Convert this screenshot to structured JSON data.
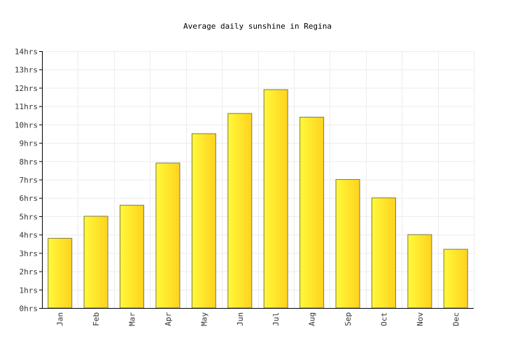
{
  "chart_data": {
    "type": "bar",
    "title": "Average daily sunshine in Regina",
    "xlabel": "",
    "ylabel": "",
    "categories": [
      "Jan",
      "Feb",
      "Mar",
      "Apr",
      "May",
      "Jun",
      "Jul",
      "Aug",
      "Sep",
      "Oct",
      "Nov",
      "Dec"
    ],
    "values": [
      3.8,
      5.0,
      5.6,
      7.9,
      9.5,
      10.6,
      11.9,
      10.4,
      7.0,
      6.0,
      4.0,
      3.2
    ],
    "ylim": [
      0,
      14
    ],
    "yticks": [
      0,
      1,
      2,
      3,
      4,
      5,
      6,
      7,
      8,
      9,
      10,
      11,
      12,
      13,
      14
    ],
    "ytick_suffix": "hrs",
    "grid": true,
    "legend": "none",
    "bar_color_light": "#fff93a",
    "bar_color_dark": "#ffd21f"
  }
}
